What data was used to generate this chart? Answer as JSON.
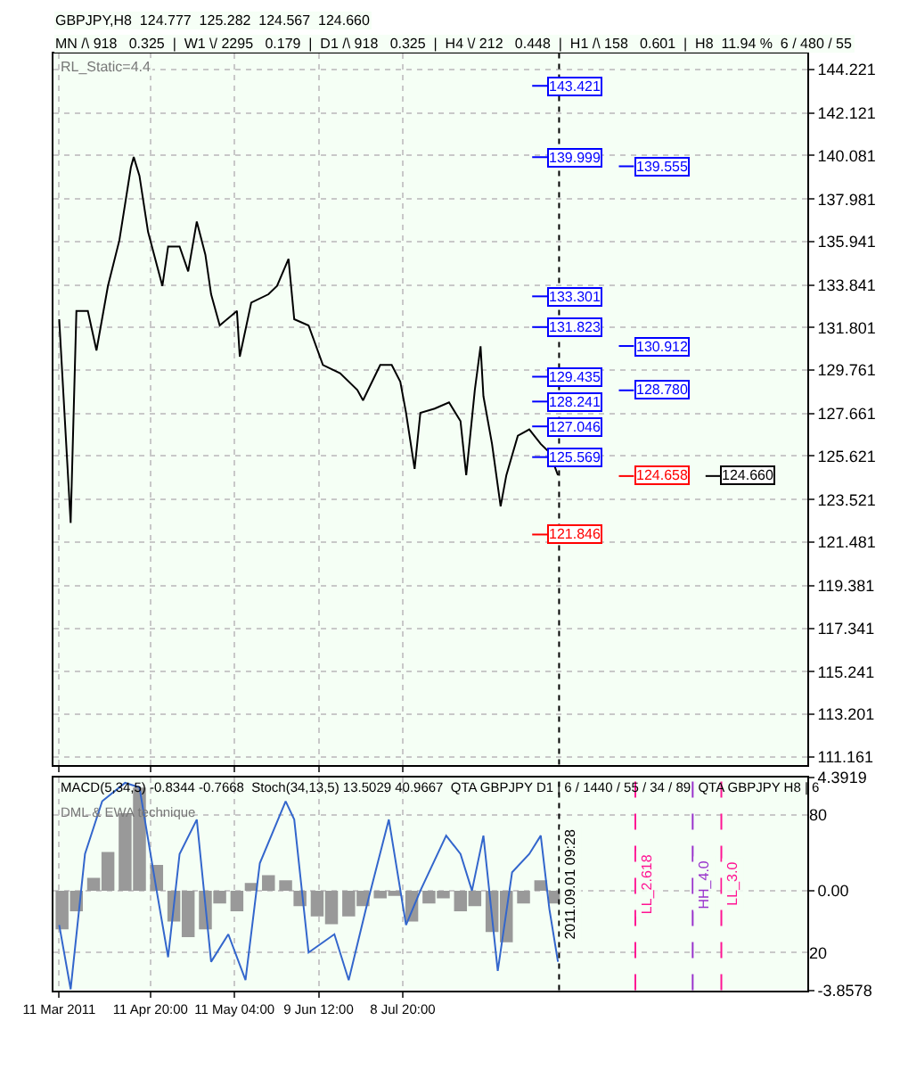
{
  "chart_data": [
    {
      "type": "line",
      "title": "GBPJPY,H8  124.777  125.282  124.567  124.660",
      "subtitle": "MN /\\ 918   0.325  |  W1 \\/ 2295   0.179  |  D1 /\\ 918   0.325  |  H4 \\/ 212   0.448  |  H1 /\\ 158   0.601  |  H8  11.94 %  6 / 480 / 55",
      "annotations": [
        "RL_Static=4.4"
      ],
      "x": [
        "2011-03-11",
        "2011-03-15",
        "2011-03-17",
        "2011-03-21",
        "2011-03-24",
        "2011-03-28",
        "2011-04-01",
        "2011-04-05",
        "2011-04-06",
        "2011-04-08",
        "2011-04-11",
        "2011-04-16",
        "2011-04-18",
        "2011-04-22",
        "2011-04-25",
        "2011-04-28",
        "2011-05-01",
        "2011-05-03",
        "2011-05-06",
        "2011-05-12",
        "2011-05-13",
        "2011-05-17",
        "2011-05-23",
        "2011-05-26",
        "2011-05-30",
        "2011-06-01",
        "2011-06-06",
        "2011-06-11",
        "2011-06-17",
        "2011-06-23",
        "2011-06-25",
        "2011-07-01",
        "2011-07-05",
        "2011-07-08",
        "2011-07-10",
        "2011-07-13",
        "2011-07-15",
        "2011-07-20",
        "2011-07-25",
        "2011-07-29",
        "2011-07-31",
        "2011-08-03",
        "2011-08-05",
        "2011-08-06",
        "2011-08-09",
        "2011-08-12",
        "2011-08-14",
        "2011-08-18",
        "2011-08-22",
        "2011-08-26",
        "2011-08-29",
        "2011-09-01"
      ],
      "series": [
        {
          "color": "#000000",
          "values": [
            132.2,
            122.4,
            132.6,
            132.6,
            130.7,
            133.8,
            136.0,
            139.5,
            140.0,
            139.1,
            136.4,
            133.8,
            135.7,
            135.7,
            134.5,
            136.9,
            135.3,
            133.4,
            131.9,
            132.6,
            130.4,
            133.0,
            133.4,
            133.8,
            135.1,
            132.2,
            131.9,
            130.0,
            129.6,
            128.8,
            128.3,
            130.0,
            130.0,
            129.2,
            127.7,
            125.0,
            127.7,
            127.9,
            128.2,
            127.3,
            124.7,
            128.8,
            130.9,
            128.5,
            126.2,
            123.2,
            124.7,
            126.6,
            126.9,
            126.2,
            125.8,
            124.7
          ]
        }
      ],
      "xlim": [
        "2011-03-09",
        "2011-11-27"
      ],
      "xticks": [
        {
          "value": "2011-03-11",
          "label": null
        },
        {
          "value": "2011-04-11T20:00",
          "label": null
        },
        {
          "value": "2011-05-11T04:00",
          "label": null
        },
        {
          "value": "2011-06-09T12:00",
          "label": null
        },
        {
          "value": "2011-07-08T20:00",
          "label": null
        }
      ],
      "ylim": [
        110.78,
        144.98
      ],
      "yticks": [
        111.161,
        113.201,
        115.241,
        117.341,
        119.381,
        121.481,
        123.521,
        125.621,
        127.661,
        129.761,
        131.801,
        133.841,
        135.941,
        137.981,
        140.081,
        142.121,
        144.221
      ],
      "tick_labels": "y",
      "grid": true,
      "ref_lines": [
        {
          "axis": "y",
          "value": 143.421,
          "label": "143.421",
          "color": "#0000ff"
        },
        {
          "axis": "y",
          "value": 139.999,
          "label": "139.999",
          "color": "#0000ff"
        },
        {
          "axis": "y",
          "value": 139.555,
          "label": "139.555",
          "color": "#0000ff"
        },
        {
          "axis": "y",
          "value": 133.301,
          "label": "133.301",
          "color": "#0000ff"
        },
        {
          "axis": "y",
          "value": 131.823,
          "label": "131.823",
          "color": "#0000ff"
        },
        {
          "axis": "y",
          "value": 130.912,
          "label": "130.912",
          "color": "#0000ff"
        },
        {
          "axis": "y",
          "value": 129.435,
          "label": "129.435",
          "color": "#0000ff"
        },
        {
          "axis": "y",
          "value": 128.78,
          "label": "128.780",
          "color": "#0000ff"
        },
        {
          "axis": "y",
          "value": 128.241,
          "label": "128.241",
          "color": "#0000ff"
        },
        {
          "axis": "y",
          "value": 127.046,
          "label": "127.046",
          "color": "#0000ff"
        },
        {
          "axis": "y",
          "value": 125.569,
          "label": "125.569",
          "color": "#0000ff"
        },
        {
          "axis": "y",
          "value": 124.658,
          "label": "124.658",
          "color": "#ff0000"
        },
        {
          "axis": "y",
          "value": 124.66,
          "label": "124.660",
          "color": "#000000"
        },
        {
          "axis": "y",
          "value": 121.846,
          "label": "121.846",
          "color": "#ff0000"
        },
        {
          "axis": "x",
          "value": "2011-09-01T09:28",
          "color": "#000000",
          "line_style": "dotted"
        }
      ]
    },
    {
      "type": "bar",
      "title": "MACD(5,34,5) -0.8344 -0.7668  Stoch(34,13,5) 13.5029 40.9667  QTA GBPJPY D1 | 6 / 1440 / 55 / 34 / 89  QTA GBPJPY H8 | 6",
      "annotations": [
        "DML & EWA technique"
      ],
      "series": [
        {
          "type": "bar",
          "color": "#999999",
          "x": [
            "2011-03-12",
            "2011-03-17",
            "2011-03-23",
            "2011-03-28",
            "2011-04-03",
            "2011-04-08",
            "2011-04-14",
            "2011-04-20",
            "2011-04-25",
            "2011-05-01",
            "2011-05-06",
            "2011-05-12",
            "2011-05-17",
            "2011-05-23",
            "2011-05-29",
            "2011-06-03",
            "2011-06-09",
            "2011-06-14",
            "2011-06-20",
            "2011-06-25",
            "2011-07-01",
            "2011-07-06",
            "2011-07-12",
            "2011-07-18",
            "2011-07-23",
            "2011-07-29",
            "2011-08-03",
            "2011-08-09",
            "2011-08-14",
            "2011-08-20",
            "2011-08-26",
            "2011-08-31"
          ],
          "values": [
            -1.5,
            -0.8,
            0.5,
            1.5,
            3.0,
            4.0,
            1.0,
            -1.2,
            -1.8,
            -1.5,
            -0.5,
            -0.8,
            0.3,
            0.6,
            0.4,
            -0.6,
            -1.0,
            -1.3,
            -1.0,
            -0.6,
            -0.3,
            -0.2,
            -1.2,
            -0.5,
            -0.3,
            -0.8,
            -0.6,
            -1.6,
            -2.0,
            -0.5,
            0.4,
            -0.5
          ]
        },
        {
          "type": "line",
          "axis": "y2",
          "color": "#3366cc",
          "x": [
            "2011-03-11",
            "2011-03-15",
            "2011-03-20",
            "2011-03-26",
            "2011-04-03",
            "2011-04-08",
            "2011-04-14",
            "2011-04-18",
            "2011-04-22",
            "2011-04-28",
            "2011-05-03",
            "2011-05-09",
            "2011-05-15",
            "2011-05-20",
            "2011-05-29",
            "2011-06-01",
            "2011-06-06",
            "2011-06-15",
            "2011-06-20",
            "2011-06-26",
            "2011-07-04",
            "2011-07-10",
            "2011-07-15",
            "2011-07-24",
            "2011-07-29",
            "2011-08-02",
            "2011-08-06",
            "2011-08-11",
            "2011-08-16",
            "2011-08-22",
            "2011-08-26",
            "2011-08-29",
            "2011-09-01"
          ],
          "values": [
            32,
            4,
            63,
            86,
            94,
            92,
            47,
            18,
            63,
            78,
            16,
            28,
            8,
            59,
            86,
            78,
            20,
            28,
            8,
            39,
            78,
            32,
            47,
            71,
            63,
            47,
            71,
            12,
            55,
            63,
            71,
            39,
            16
          ]
        }
      ],
      "xlim": [
        "2011-03-09",
        "2011-11-27"
      ],
      "xticks": [
        {
          "value": "2011-03-11",
          "label": "11 Mar 2011"
        },
        {
          "value": "2011-04-11T20:00",
          "label": "11 Apr 20:00"
        },
        {
          "value": "2011-05-11T04:00",
          "label": "11 May 04:00"
        },
        {
          "value": "2011-06-09T12:00",
          "label": "9 Jun 12:00"
        },
        {
          "value": "2011-07-08T20:00",
          "label": "8 Jul 20:00"
        }
      ],
      "ylim": [
        -3.8578,
        4.3919
      ],
      "yticks": [
        -3.8578,
        {
          "value": 0,
          "label": "0.00"
        },
        4.3919
      ],
      "y2lim": [
        3.6,
        96.4
      ],
      "y2ticks": [
        20,
        80
      ],
      "grid": true,
      "ref_lines": [
        {
          "axis": "x",
          "value": "2011-09-01T09:28",
          "label": "2011.09.01 09:28",
          "color": "#000000",
          "line_style": "dotted"
        },
        {
          "axis": "x",
          "value": "2011-09-28",
          "label": "LL_2.618",
          "color": "#ff1493",
          "line_style": "dashed"
        },
        {
          "axis": "x",
          "value": "2011-10-18",
          "label": "HH_4.0",
          "color": "#9933cc",
          "line_style": "dashed"
        },
        {
          "axis": "x",
          "value": "2011-10-28",
          "label": "LL_3.0",
          "color": "#ff1493",
          "line_style": "dashed"
        }
      ]
    }
  ]
}
